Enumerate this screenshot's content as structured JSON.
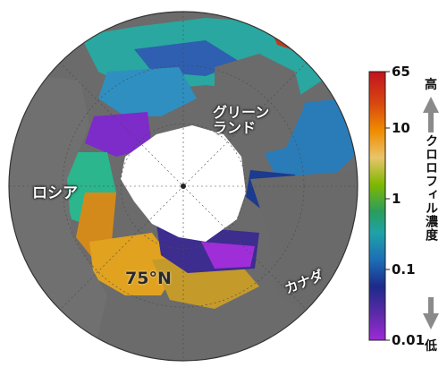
{
  "map": {
    "labels": {
      "greenland": "グリーン\nランド",
      "russia": "ロシア",
      "canada": "カナダ",
      "latitude": "75°N"
    }
  },
  "colorbar": {
    "ticks": [
      "65",
      "10",
      "1",
      "0.1",
      "0.01"
    ],
    "high_label": "高",
    "low_label": "低",
    "title": "クロロフィル濃度",
    "stops": [
      "#d7191c",
      "#e66101",
      "#fdb863",
      "#a6d96a",
      "#1a9641",
      "#2bbfa0",
      "#1f78b4",
      "#2c2c8a",
      "#7b2cbf",
      "#c026d3"
    ]
  },
  "colors": {
    "land": "#6e6e6e",
    "ice": "#ffffff",
    "background": "#ffffff"
  }
}
